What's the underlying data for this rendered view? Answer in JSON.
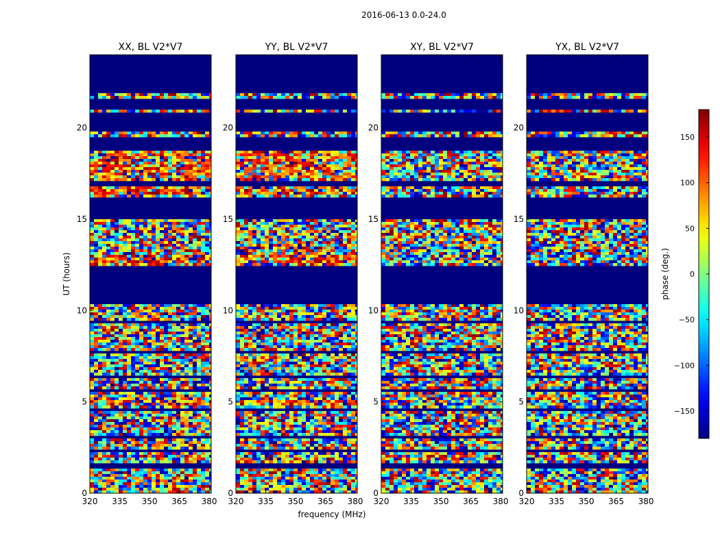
{
  "figure": {
    "suptitle": "2016-06-13 0.0-24.0",
    "ylabel": "UT (hours)",
    "xlabel": "frequency (MHz)"
  },
  "chart_data": {
    "type": "heatmap",
    "x_range": [
      320,
      381
    ],
    "y_range": [
      0,
      24
    ],
    "x_ticks": [
      320,
      335,
      350,
      365,
      380
    ],
    "y_ticks": [
      0,
      5,
      10,
      15,
      20
    ],
    "colormap": "jet",
    "grid": false,
    "panels": [
      {
        "title": "XX, BL V2*V7",
        "type": "heatmap"
      },
      {
        "title": "YY, BL V2*V7",
        "type": "heatmap"
      },
      {
        "title": "XY, BL V2*V7",
        "type": "heatmap"
      },
      {
        "title": "YX, BL V2*V7",
        "type": "heatmap"
      }
    ],
    "masked_ut_intervals": [
      [
        0.0,
        0.05
      ],
      [
        1.3,
        1.6
      ],
      [
        2.25,
        2.35
      ],
      [
        3.05,
        3.2
      ],
      [
        4.45,
        4.6
      ],
      [
        5.6,
        5.7
      ],
      [
        6.35,
        6.45
      ],
      [
        7.0,
        7.1
      ],
      [
        7.7,
        7.8
      ],
      [
        8.5,
        8.6
      ],
      [
        9.3,
        9.4
      ],
      [
        10.35,
        12.5
      ],
      [
        15.05,
        16.15
      ],
      [
        16.75,
        17.05
      ],
      [
        18.8,
        19.45
      ],
      [
        19.85,
        20.8
      ],
      [
        21.0,
        21.55
      ],
      [
        21.95,
        24.0
      ]
    ],
    "colorbar": {
      "label": "phase (deg.)",
      "range": [
        -180,
        180
      ],
      "ticks": [
        150,
        100,
        50,
        0,
        -50,
        -100,
        -150
      ]
    }
  }
}
